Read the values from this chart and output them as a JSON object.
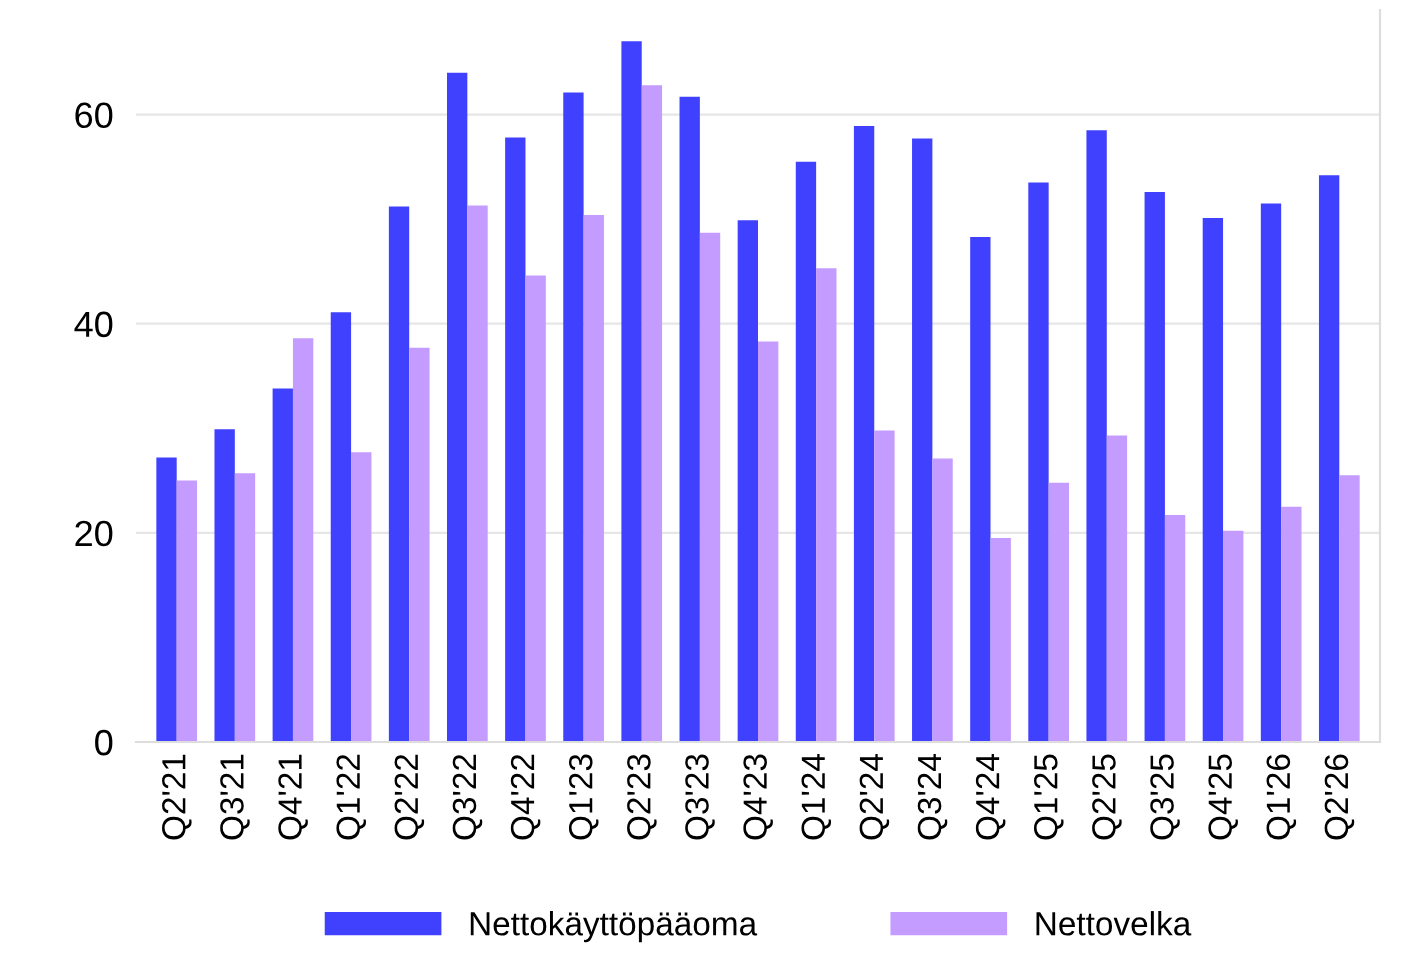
{
  "chart_data": {
    "type": "bar",
    "categories": [
      "Q2'21",
      "Q3'21",
      "Q4'21",
      "Q1'22",
      "Q2'22",
      "Q3'22",
      "Q4'22",
      "Q1'23",
      "Q2'23",
      "Q3'23",
      "Q4'23",
      "Q1'24",
      "Q2'24",
      "Q3'24",
      "Q4'24",
      "Q1'25",
      "Q2'25",
      "Q3'25",
      "Q4'25",
      "Q1'26",
      "Q2'26"
    ],
    "series": [
      {
        "name": "Nettokäyttöpääoma",
        "color": "#4040ff",
        "values": [
          27.2,
          29.9,
          33.8,
          41.1,
          51.2,
          64.0,
          57.8,
          62.1,
          67.0,
          61.7,
          49.9,
          55.5,
          58.9,
          57.7,
          48.3,
          53.5,
          58.5,
          52.6,
          50.1,
          51.5,
          54.2
        ]
      },
      {
        "name": "Nettovelka",
        "color": "#c49cff",
        "values": [
          25.0,
          25.7,
          38.6,
          27.7,
          37.7,
          51.3,
          44.6,
          50.4,
          62.8,
          48.7,
          38.3,
          45.3,
          29.8,
          27.1,
          19.5,
          24.8,
          29.3,
          21.7,
          20.2,
          22.5,
          25.5
        ]
      }
    ],
    "ylim": [
      0,
      70
    ],
    "yticks": [
      0,
      20,
      40,
      60
    ],
    "grid": "y",
    "legend": "bottom"
  }
}
